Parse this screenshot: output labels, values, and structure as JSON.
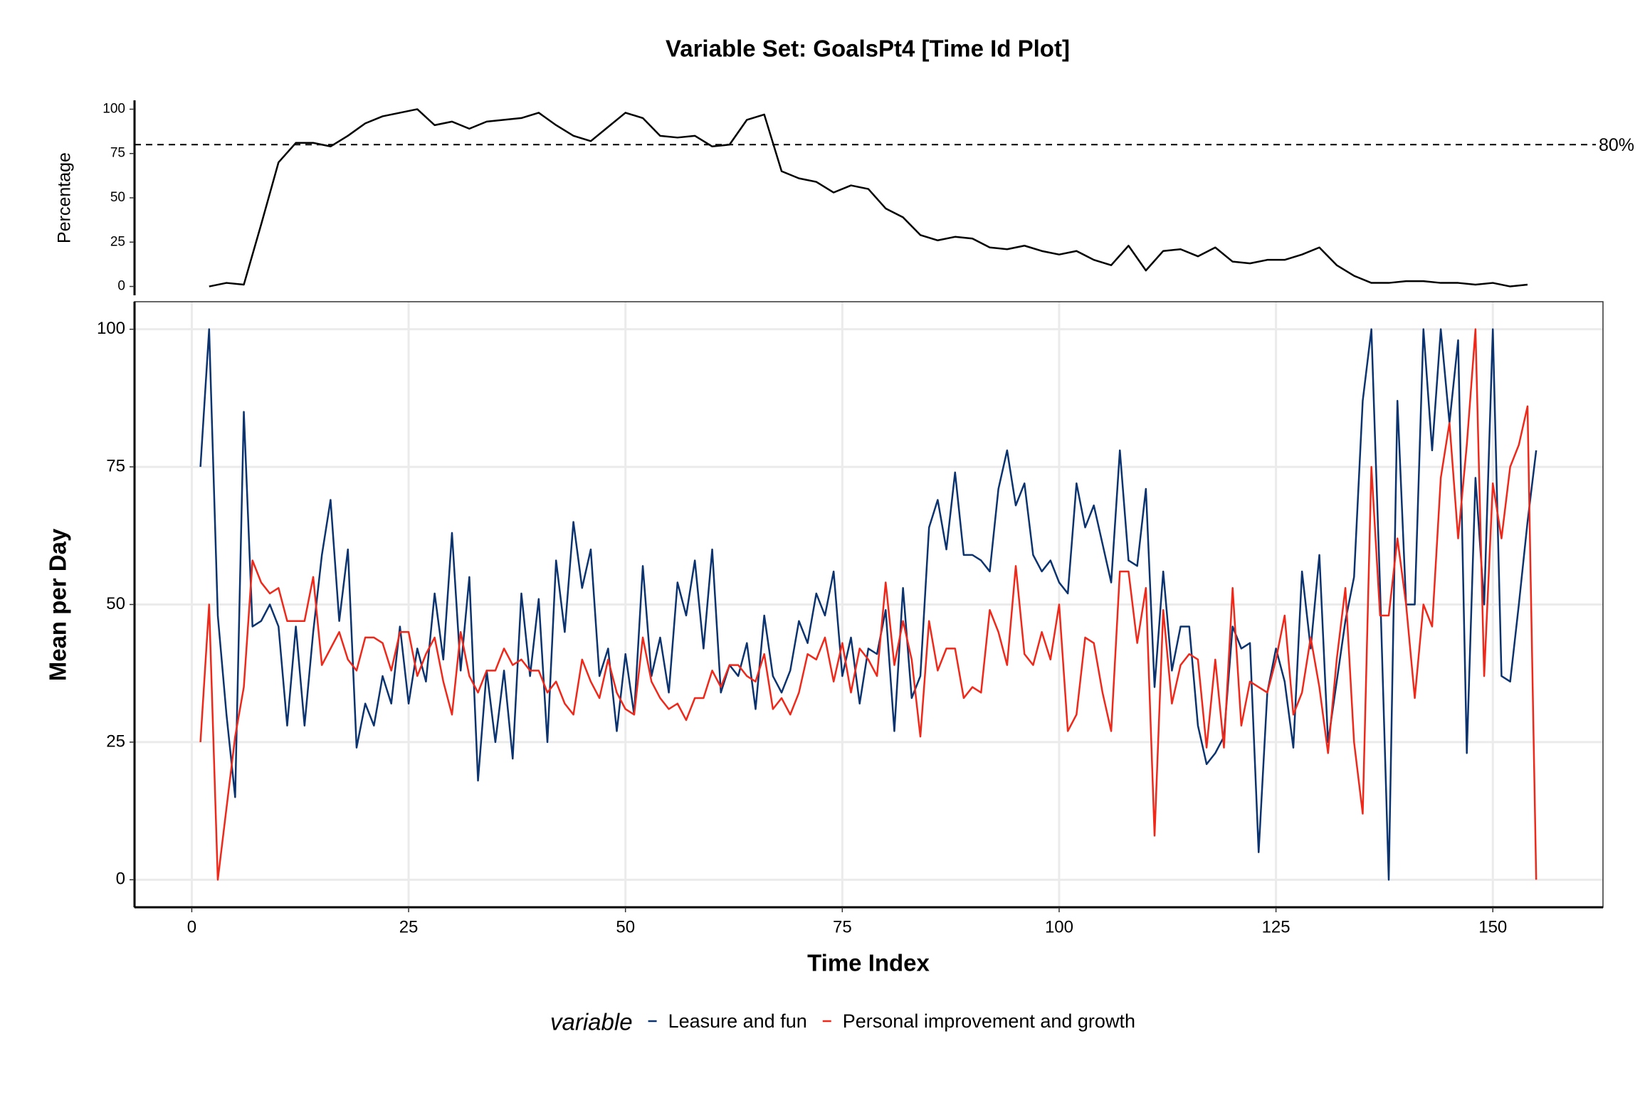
{
  "chart_data": [
    {
      "type": "line",
      "title": "Variable Set: GoalsPt4 [Time Id Plot]",
      "ylabel": "Percentage",
      "x": [
        2,
        4,
        6,
        8,
        10,
        12,
        14,
        16,
        18,
        20,
        22,
        24,
        26,
        28,
        30,
        32,
        34,
        36,
        38,
        40,
        42,
        44,
        46,
        48,
        50,
        52,
        54,
        56,
        58,
        60,
        62,
        64,
        66,
        68,
        70,
        72,
        74,
        76,
        78,
        80,
        82,
        84,
        86,
        88,
        90,
        92,
        94,
        96,
        98,
        100,
        102,
        104,
        106,
        108,
        110,
        112,
        114,
        116,
        118,
        120,
        122,
        124,
        126,
        128,
        130,
        132,
        134,
        136,
        138,
        140,
        142,
        144,
        146,
        148,
        150,
        152,
        154
      ],
      "series": [
        {
          "color": "#000000",
          "values": [
            0,
            2,
            1,
            35,
            70,
            81,
            81,
            79,
            85,
            92,
            96,
            98,
            100,
            91,
            93,
            89,
            93,
            94,
            95,
            98,
            91,
            85,
            82,
            90,
            98,
            95,
            85,
            84,
            85,
            79,
            80,
            94,
            97,
            65,
            61,
            59,
            53,
            57,
            55,
            44,
            39,
            29,
            26,
            28,
            27,
            22,
            21,
            23,
            20,
            18,
            20,
            15,
            12,
            23,
            9,
            20,
            21,
            17,
            22,
            14,
            13,
            15,
            15,
            18,
            22,
            12,
            6,
            2,
            2,
            3,
            3,
            2,
            2,
            1,
            2,
            0,
            1
          ]
        }
      ],
      "threshold": {
        "value": 80,
        "label": "80%"
      },
      "xlim": [
        -6.6,
        162.7
      ],
      "ylim": [
        -5,
        105
      ],
      "yticks": [
        0,
        25,
        50,
        75,
        100
      ]
    },
    {
      "type": "line",
      "xlabel": "Time Index",
      "ylabel": "Mean per Day",
      "legend_title": "variable",
      "grid": true,
      "x": [
        1,
        2,
        3,
        4,
        5,
        6,
        7,
        8,
        9,
        10,
        11,
        12,
        13,
        14,
        15,
        16,
        17,
        18,
        19,
        20,
        21,
        22,
        23,
        24,
        25,
        26,
        27,
        28,
        29,
        30,
        31,
        32,
        33,
        34,
        35,
        36,
        37,
        38,
        39,
        40,
        41,
        42,
        43,
        44,
        45,
        46,
        47,
        48,
        49,
        50,
        51,
        52,
        53,
        54,
        55,
        56,
        57,
        58,
        59,
        60,
        61,
        62,
        63,
        64,
        65,
        66,
        67,
        68,
        69,
        70,
        71,
        72,
        73,
        74,
        75,
        76,
        77,
        78,
        79,
        80,
        81,
        82,
        83,
        84,
        85,
        86,
        87,
        88,
        89,
        90,
        91,
        92,
        93,
        94,
        95,
        96,
        97,
        98,
        99,
        100,
        101,
        102,
        103,
        104,
        105,
        106,
        107,
        108,
        109,
        110,
        111,
        112,
        113,
        114,
        115,
        116,
        117,
        118,
        119,
        120,
        121,
        122,
        123,
        124,
        125,
        126,
        127,
        128,
        129,
        130,
        131,
        132,
        133,
        134,
        135,
        136,
        137,
        138,
        139,
        140,
        141,
        142,
        143,
        144,
        145,
        146,
        147,
        148,
        149,
        150,
        151,
        152,
        153,
        154,
        155
      ],
      "series": [
        {
          "name": "Leasure and fun",
          "color": "#0b3370",
          "values": [
            75,
            100,
            48,
            30,
            15,
            85,
            46,
            47,
            50,
            46,
            28,
            46,
            28,
            45,
            59,
            69,
            47,
            60,
            24,
            32,
            28,
            37,
            32,
            46,
            32,
            42,
            36,
            52,
            40,
            63,
            38,
            55,
            18,
            38,
            25,
            38,
            22,
            52,
            37,
            51,
            25,
            58,
            45,
            65,
            53,
            60,
            37,
            42,
            27,
            41,
            30,
            57,
            37,
            44,
            34,
            54,
            48,
            58,
            42,
            60,
            34,
            39,
            37,
            43,
            31,
            48,
            37,
            34,
            38,
            47,
            43,
            52,
            48,
            56,
            37,
            44,
            32,
            42,
            41,
            49,
            27,
            53,
            33,
            37,
            64,
            69,
            60,
            74,
            59,
            59,
            58,
            56,
            71,
            78,
            68,
            72,
            59,
            56,
            58,
            54,
            52,
            72,
            64,
            68,
            61,
            54,
            78,
            58,
            57,
            71,
            35,
            56,
            38,
            46,
            46,
            28,
            21,
            23,
            26,
            46,
            42,
            43,
            5,
            34,
            42,
            36,
            24,
            56,
            42,
            59,
            25,
            36,
            47,
            55,
            87,
            100,
            53,
            0,
            87,
            50,
            50,
            100,
            78,
            100,
            83,
            98,
            23,
            73,
            50,
            100,
            37,
            36,
            50,
            65,
            78
          ]
        },
        {
          "name": "Personal improvement and growth",
          "color": "#f0281a",
          "values": [
            25,
            50,
            0,
            13,
            26,
            35,
            58,
            54,
            52,
            53,
            47,
            47,
            47,
            55,
            39,
            42,
            45,
            40,
            38,
            44,
            44,
            43,
            38,
            45,
            45,
            37,
            41,
            44,
            36,
            30,
            45,
            37,
            34,
            38,
            38,
            42,
            39,
            40,
            38,
            38,
            34,
            36,
            32,
            30,
            40,
            36,
            33,
            40,
            34,
            31,
            30,
            44,
            36,
            33,
            31,
            32,
            29,
            33,
            33,
            38,
            35,
            39,
            39,
            37,
            36,
            41,
            31,
            33,
            30,
            34,
            41,
            40,
            44,
            36,
            43,
            34,
            42,
            40,
            37,
            54,
            39,
            47,
            40,
            26,
            47,
            38,
            42,
            42,
            33,
            35,
            34,
            49,
            45,
            39,
            57,
            41,
            39,
            45,
            40,
            50,
            27,
            30,
            44,
            43,
            34,
            27,
            56,
            56,
            43,
            53,
            8,
            49,
            32,
            39,
            41,
            40,
            24,
            40,
            24,
            53,
            28,
            36,
            35,
            34,
            40,
            48,
            30,
            34,
            44,
            35,
            23,
            40,
            53,
            25,
            12,
            75,
            48,
            48,
            62,
            50,
            33,
            50,
            46,
            73,
            83,
            62,
            79,
            100,
            37,
            72,
            62,
            75,
            79,
            86,
            0
          ]
        }
      ],
      "xlim": [
        -6.6,
        162.7
      ],
      "ylim": [
        -5,
        105
      ],
      "xticks": [
        0,
        25,
        50,
        75,
        100,
        125,
        150
      ],
      "yticks": [
        0,
        25,
        50,
        75,
        100
      ]
    }
  ]
}
